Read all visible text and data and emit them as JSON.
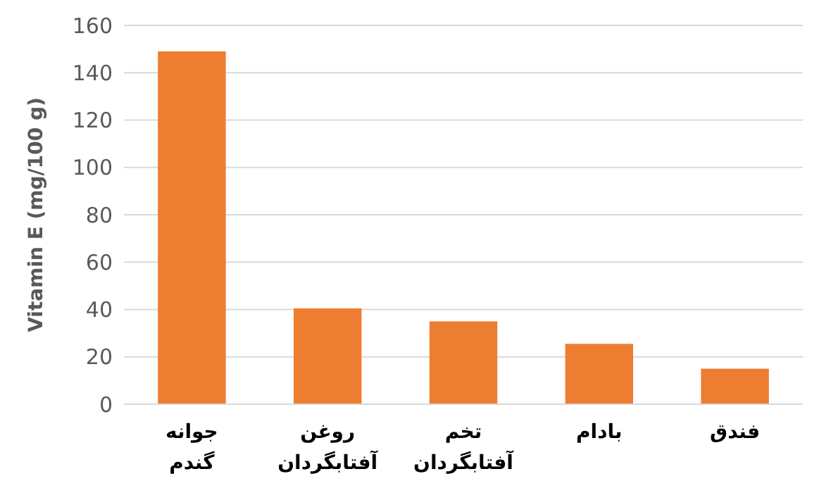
{
  "chart_data": {
    "type": "bar",
    "ylabel": "Vitamin E (mg/100 g)",
    "categories": [
      "جوانه گندم",
      "روغن آفتابگردان",
      "تخم آفتابگردان",
      "بادام",
      "فندق"
    ],
    "values": [
      149,
      40.5,
      35,
      25.5,
      15
    ],
    "color": "#ed7d31",
    "ylim": [
      0,
      160
    ],
    "yticks": [
      0,
      20,
      40,
      60,
      80,
      100,
      120,
      140,
      160
    ],
    "grid": "y"
  }
}
